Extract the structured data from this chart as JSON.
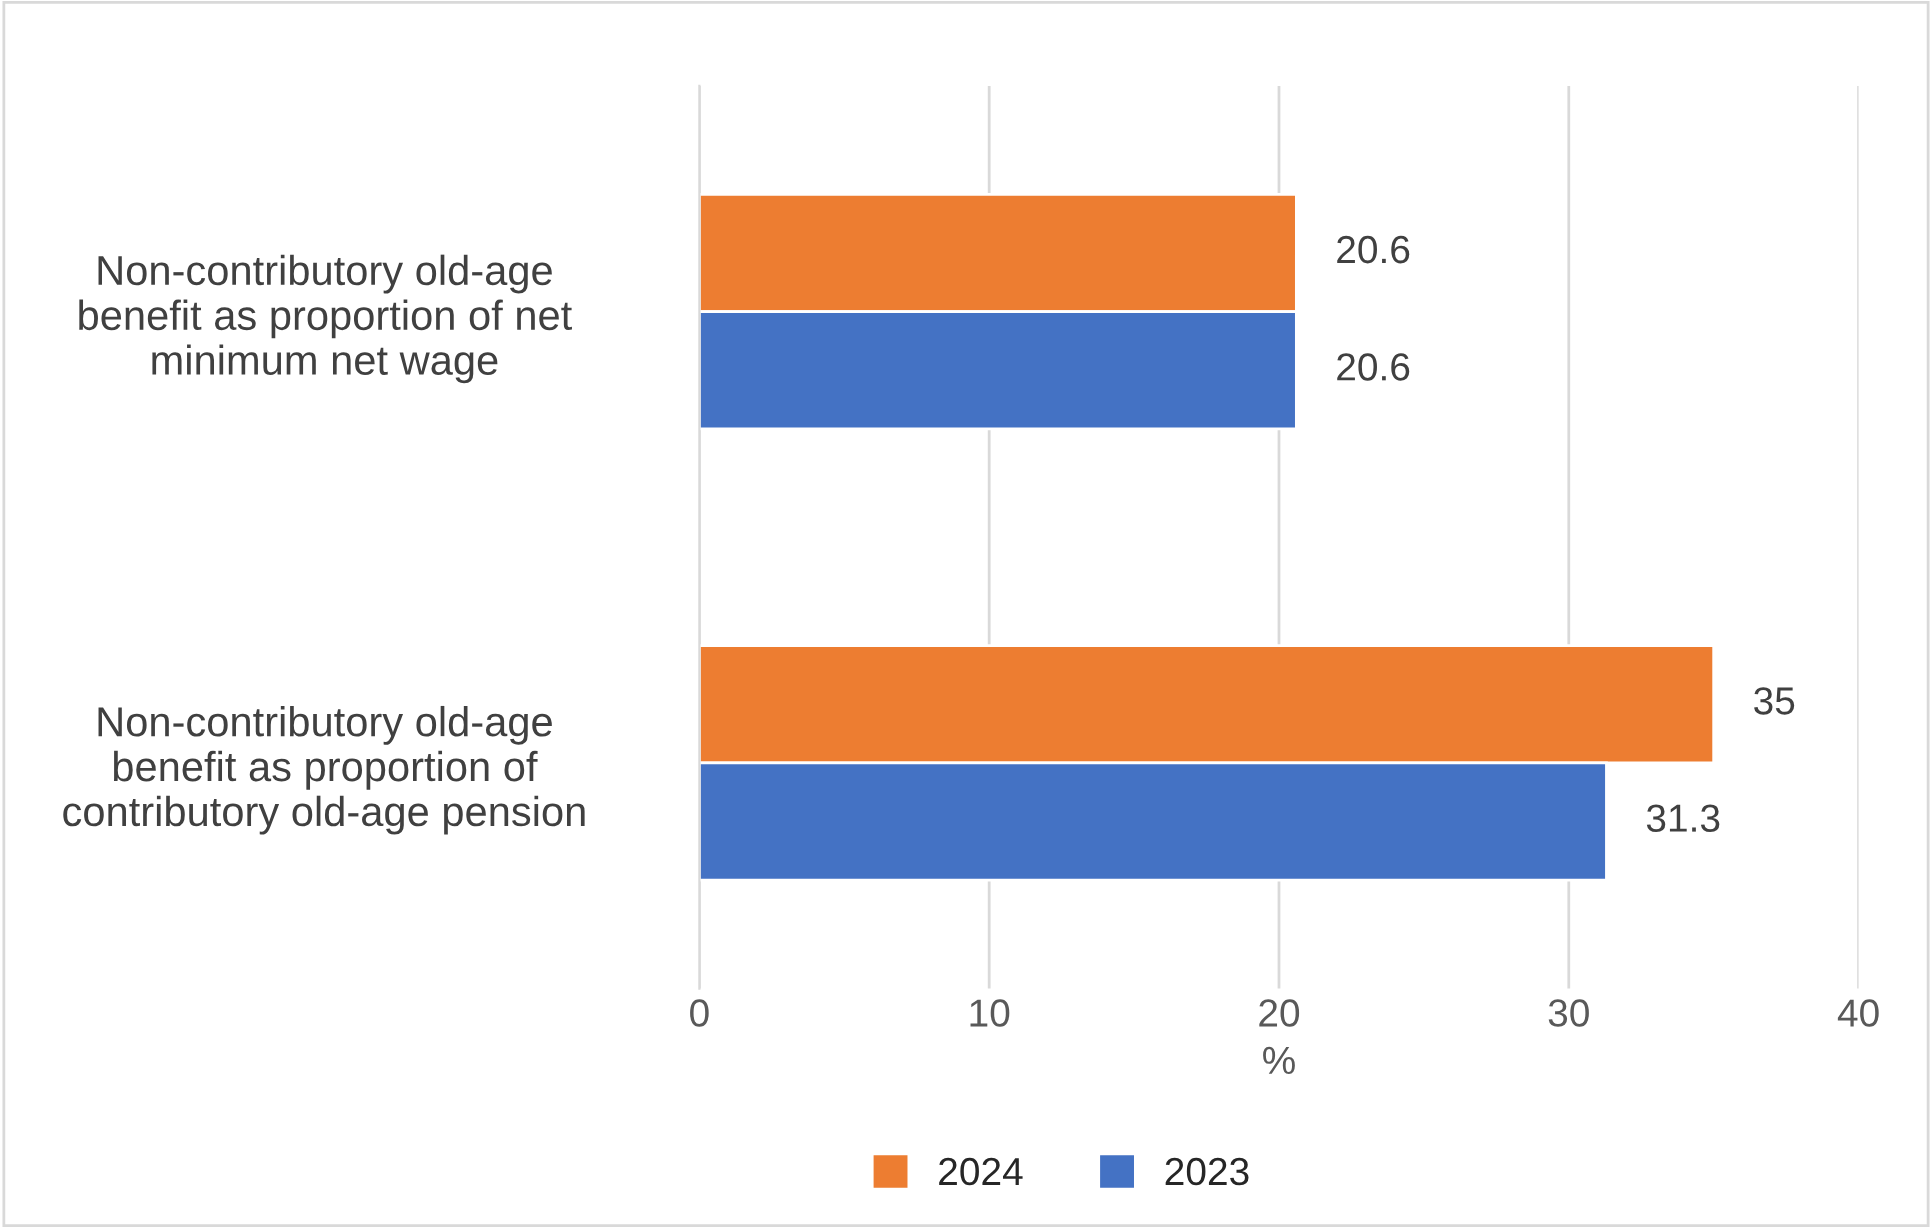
{
  "chart_data": {
    "type": "bar",
    "orientation": "horizontal",
    "categories": [
      "Non-contributory old-age\nbenefit as proportion of net\nminimum net wage",
      "Non-contributory old-age\nbenefit as proportion of\ncontributory old-age pension"
    ],
    "series": [
      {
        "name": "2024",
        "color": "#ed7d31",
        "values": [
          20.6,
          35
        ]
      },
      {
        "name": "2023",
        "color": "#4472c4",
        "values": [
          20.6,
          31.3
        ]
      }
    ],
    "xlabel": "%",
    "xlim": [
      0,
      40
    ],
    "xticks": [
      0,
      10,
      20,
      30,
      40
    ],
    "grid": "x",
    "legend": "bottom",
    "data_labels": true
  }
}
